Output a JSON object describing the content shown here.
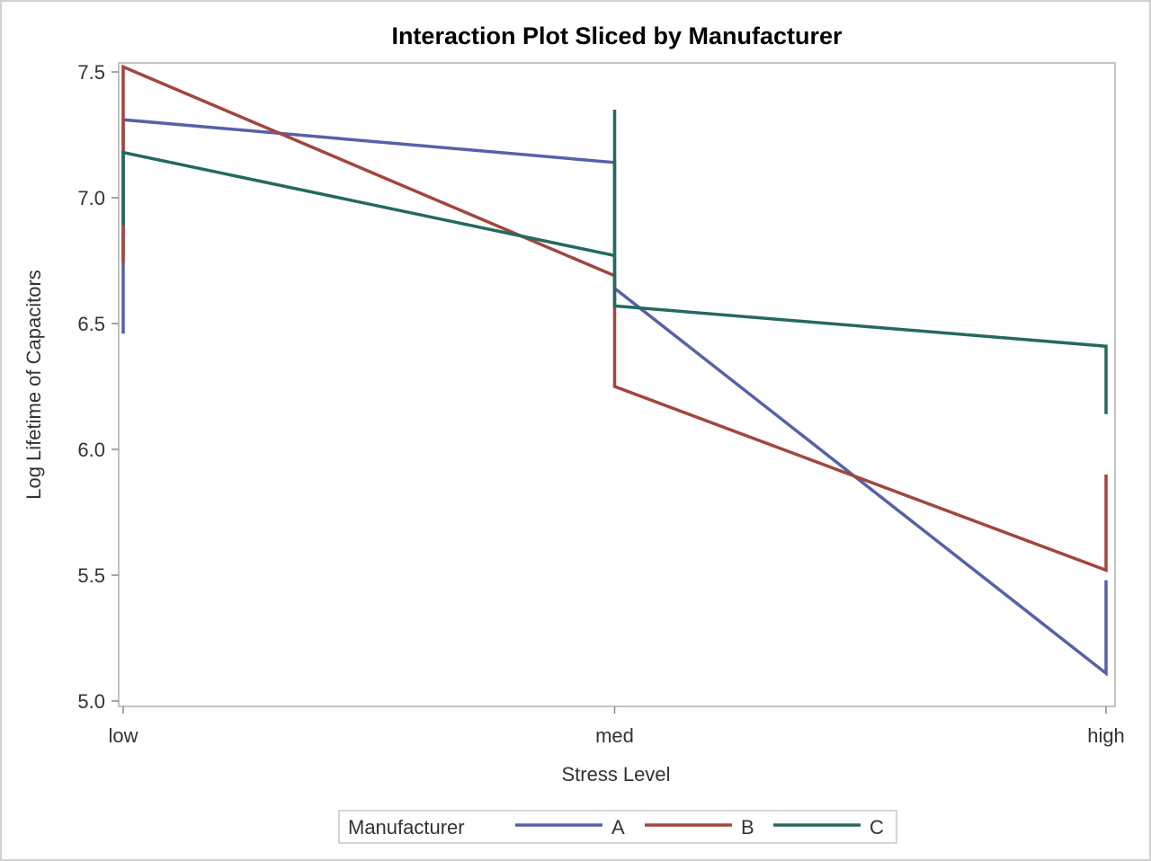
{
  "chart_data": {
    "type": "line",
    "title": "Interaction Plot Sliced by Manufacturer",
    "xlabel": "Stress Level",
    "ylabel": "Log Lifetime of Capacitors",
    "categories": [
      "low",
      "med",
      "high"
    ],
    "ylim": [
      4.98,
      7.55
    ],
    "yticks": [
      "5.0",
      "5.5",
      "6.0",
      "6.5",
      "7.0",
      "7.5"
    ],
    "grid": false,
    "legend": {
      "title": "Manufacturer",
      "position": "bottom-center"
    },
    "series": [
      {
        "name": "A",
        "color": "#5661a8",
        "points": [
          {
            "x": "low",
            "y": 6.46
          },
          {
            "x": "low",
            "y": 7.31
          },
          {
            "x": "med",
            "y": 7.14
          },
          {
            "x": "med",
            "y": 6.64
          },
          {
            "x": "high",
            "y": 5.11
          },
          {
            "x": "high",
            "y": 5.48
          }
        ]
      },
      {
        "name": "B",
        "color": "#a2463e",
        "points": [
          {
            "x": "low",
            "y": 6.74
          },
          {
            "x": "low",
            "y": 7.52
          },
          {
            "x": "med",
            "y": 6.69
          },
          {
            "x": "med",
            "y": 6.25
          },
          {
            "x": "high",
            "y": 5.52
          },
          {
            "x": "high",
            "y": 5.9
          }
        ]
      },
      {
        "name": "C",
        "color": "#24695f",
        "points": [
          {
            "x": "low",
            "y": 6.89
          },
          {
            "x": "low",
            "y": 7.18
          },
          {
            "x": "med",
            "y": 6.77
          },
          {
            "x": "med",
            "y": 7.35
          },
          {
            "x": "med",
            "y": 6.57
          },
          {
            "x": "high",
            "y": 6.41
          },
          {
            "x": "high",
            "y": 6.14
          }
        ]
      }
    ]
  }
}
